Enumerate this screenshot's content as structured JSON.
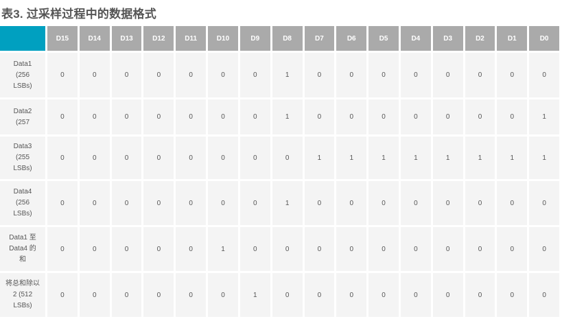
{
  "title": "表3. 过采样过程中的数据格式",
  "colors": {
    "corner": "#00a0c0",
    "header": "#aaaaaa",
    "cell": "#f4f4f4"
  },
  "columns": [
    "D15",
    "D14",
    "D13",
    "D12",
    "D11",
    "D10",
    "D9",
    "D8",
    "D7",
    "D6",
    "D5",
    "D4",
    "D3",
    "D2",
    "D1",
    "D0"
  ],
  "rows": [
    {
      "label": [
        "Data1",
        "(256",
        "LSBs)"
      ],
      "values": [
        "0",
        "0",
        "0",
        "0",
        "0",
        "0",
        "0",
        "1",
        "0",
        "0",
        "0",
        "0",
        "0",
        "0",
        "0",
        "0"
      ]
    },
    {
      "label": [
        "Data2",
        "(257"
      ],
      "values": [
        "0",
        "0",
        "0",
        "0",
        "0",
        "0",
        "0",
        "1",
        "0",
        "0",
        "0",
        "0",
        "0",
        "0",
        "0",
        "1"
      ]
    },
    {
      "label": [
        "Data3",
        "(255",
        "LSBs)"
      ],
      "values": [
        "0",
        "0",
        "0",
        "0",
        "0",
        "0",
        "0",
        "0",
        "1",
        "1",
        "1",
        "1",
        "1",
        "1",
        "1",
        "1"
      ]
    },
    {
      "label": [
        "Data4",
        "(256",
        "LSBs)"
      ],
      "values": [
        "0",
        "0",
        "0",
        "0",
        "0",
        "0",
        "0",
        "1",
        "0",
        "0",
        "0",
        "0",
        "0",
        "0",
        "0",
        "0"
      ]
    },
    {
      "label": [
        "Data1 至",
        "Data4 的",
        "和"
      ],
      "values": [
        "0",
        "0",
        "0",
        "0",
        "0",
        "1",
        "0",
        "0",
        "0",
        "0",
        "0",
        "0",
        "0",
        "0",
        "0",
        "0"
      ]
    },
    {
      "label": [
        "将总和除以",
        "2 (512",
        "LSBs)"
      ],
      "values": [
        "0",
        "0",
        "0",
        "0",
        "0",
        "0",
        "1",
        "0",
        "0",
        "0",
        "0",
        "0",
        "0",
        "0",
        "0",
        "0"
      ]
    }
  ]
}
